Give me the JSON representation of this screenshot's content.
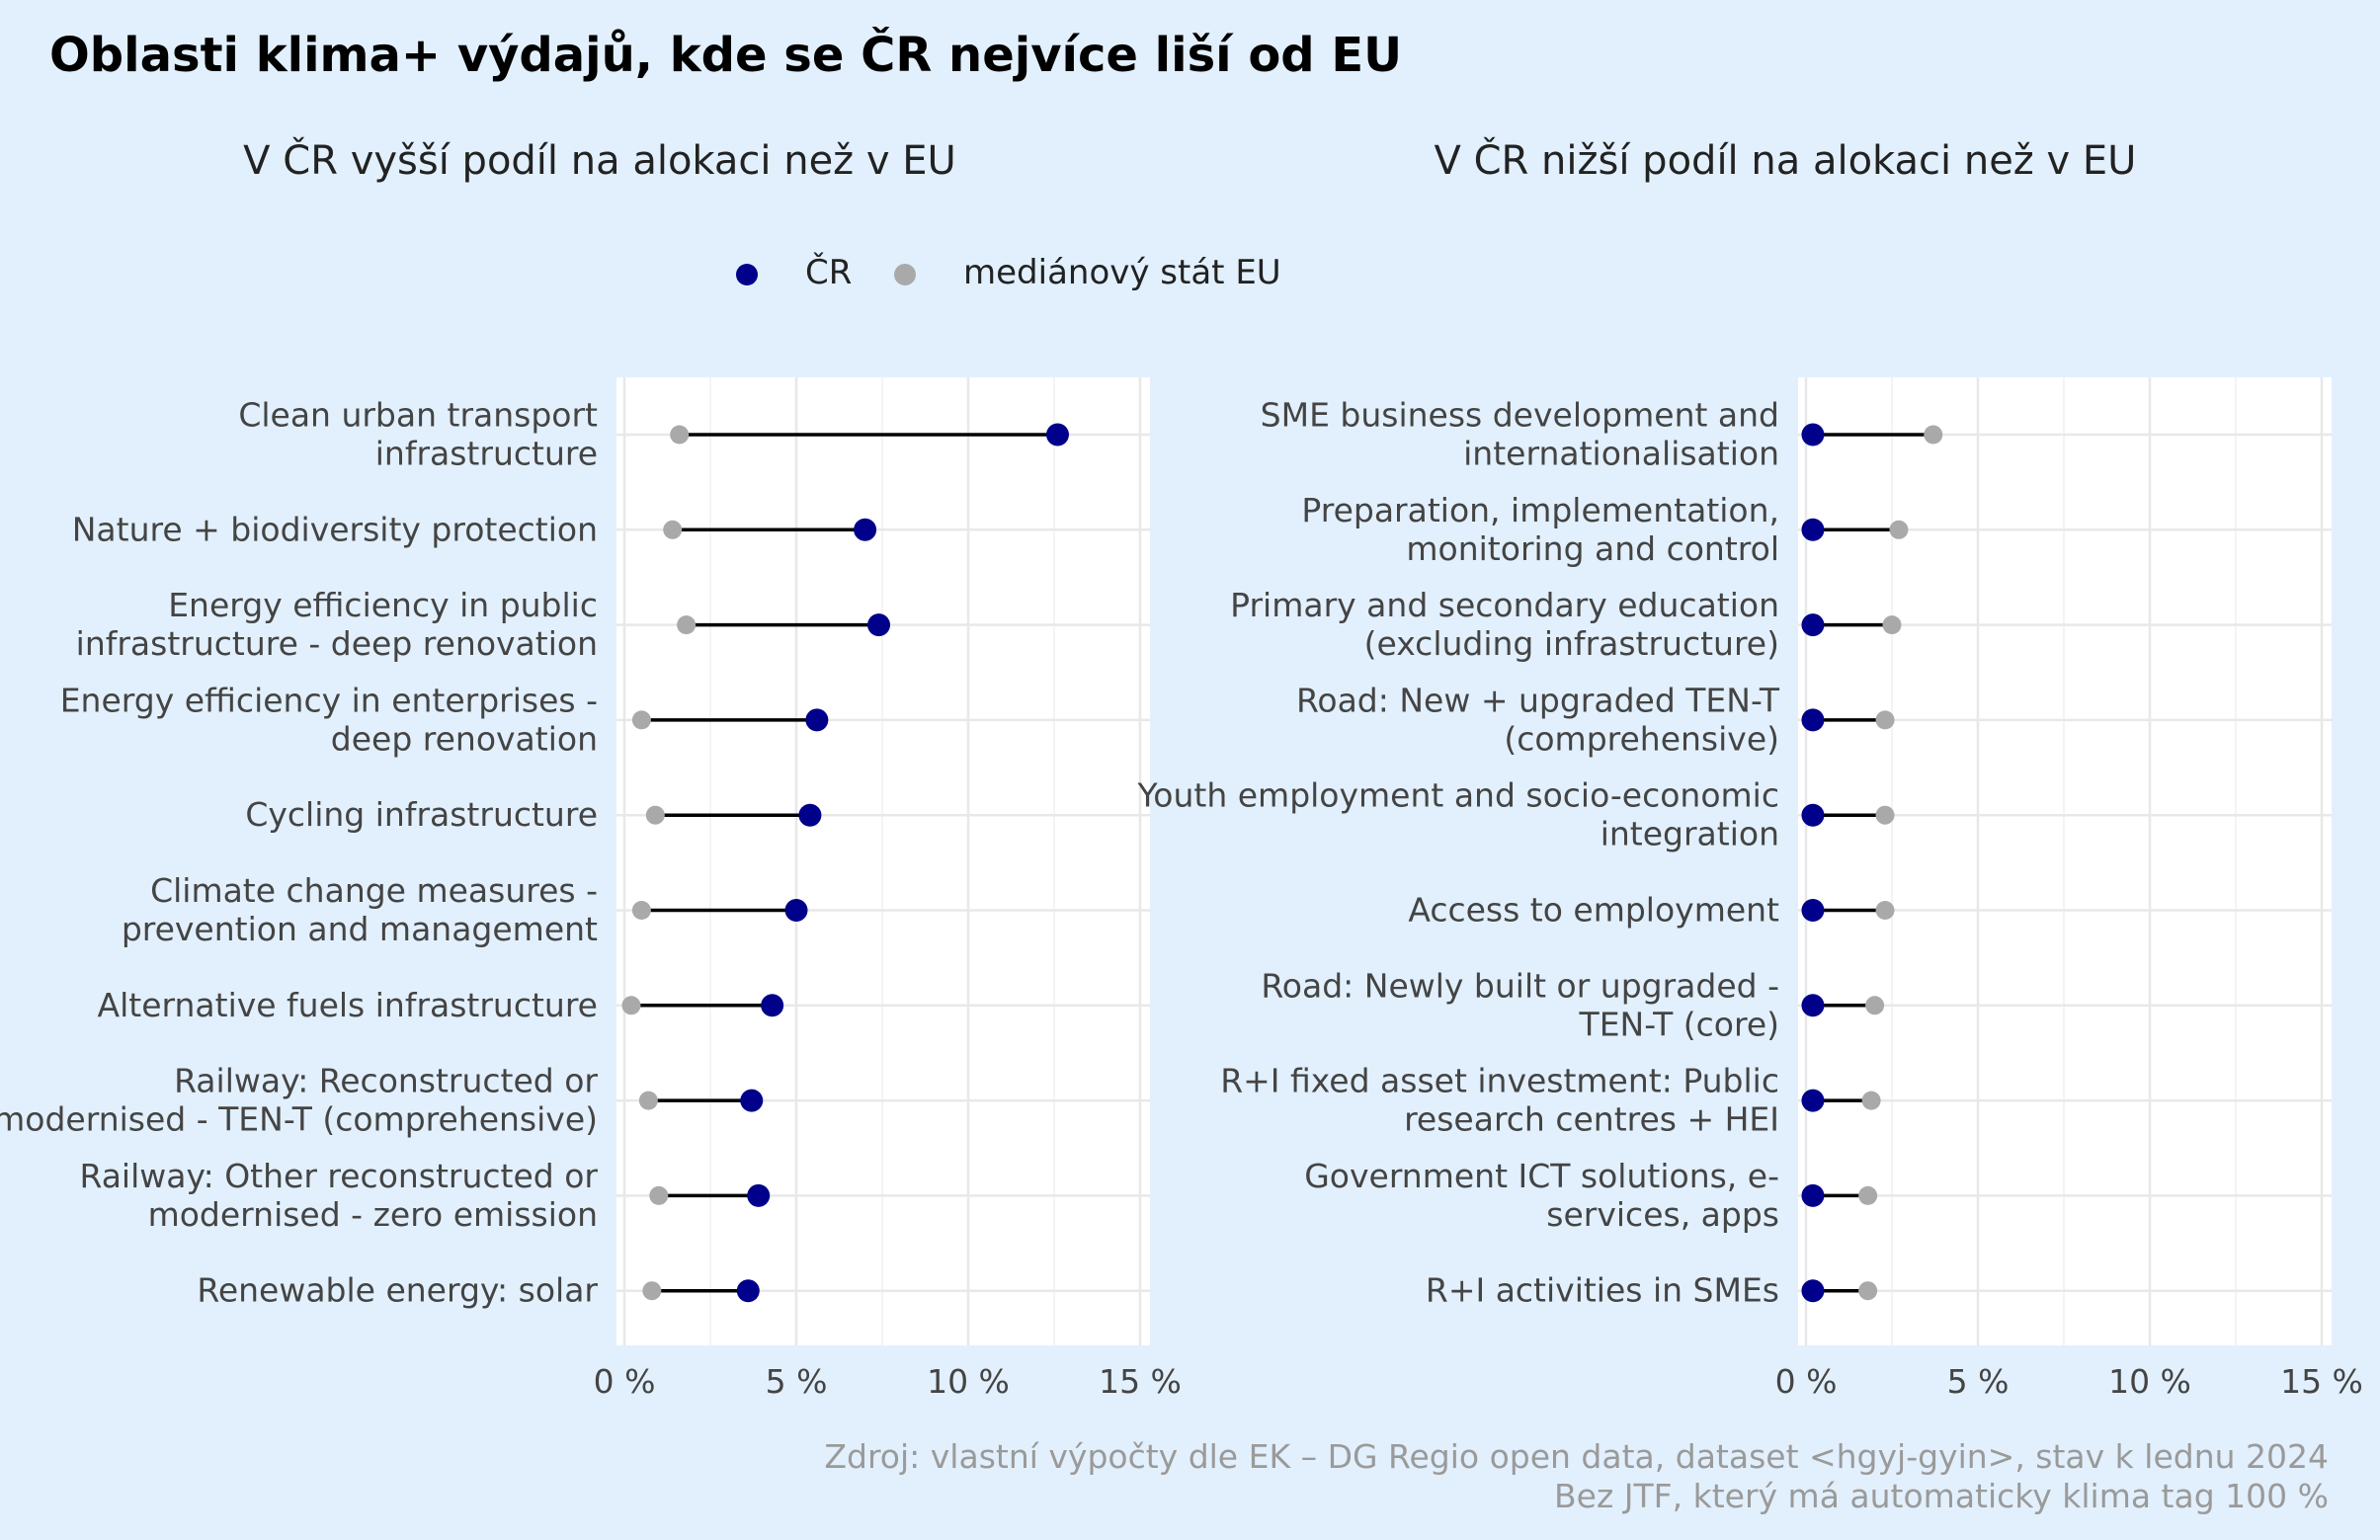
{
  "title": "Oblasti klima+ výdajů, kde se ČR nejvíce liší od EU",
  "legend": {
    "items": [
      {
        "label": "ČR",
        "color": "#00008b"
      },
      {
        "label": "mediánový stát EU",
        "color": "#a9a9a9"
      }
    ]
  },
  "source": {
    "line1": "Zdroj: vlastní výpočty dle EK – DG Regio open data, dataset <hgyj-gyin>, stav k lednu 2024",
    "line2": "Bez JTF, který má automaticky klima tag 100 %"
  },
  "colors": {
    "cr": "#00008b",
    "eu": "#a9a9a9",
    "panel": "#ffffff",
    "background": "#e2f0fd",
    "grid": "#e8e8e8"
  },
  "chart_data": [
    {
      "type": "dumbbell",
      "subtitle": "V ČR vyšší podíl na alokaci než v EU",
      "xlim": [
        0,
        15
      ],
      "x_ticks": [
        0,
        5,
        10,
        15
      ],
      "x_tick_labels": [
        "0 %",
        "5 %",
        "10 %",
        "15 %"
      ],
      "grid": true,
      "categories": [
        [
          "Clean urban transport",
          "infrastructure"
        ],
        [
          "Nature + biodiversity protection"
        ],
        [
          "Energy efficiency in public",
          "infrastructure - deep renovation"
        ],
        [
          "Energy efficiency in enterprises -",
          "deep renovation"
        ],
        [
          "Cycling infrastructure"
        ],
        [
          "Climate change measures -",
          "prevention and management"
        ],
        [
          "Alternative fuels infrastructure"
        ],
        [
          "Railway: Reconstructed or",
          "modernised - TEN-T (comprehensive)"
        ],
        [
          "Railway: Other reconstructed or",
          "modernised - zero emission"
        ],
        [
          "Renewable energy: solar"
        ]
      ],
      "series": [
        {
          "name": "ČR",
          "values": [
            12.6,
            7.0,
            7.4,
            5.6,
            5.4,
            5.0,
            4.3,
            3.7,
            3.9,
            3.6
          ]
        },
        {
          "name": "mediánový stát EU",
          "values": [
            1.6,
            1.4,
            1.8,
            0.5,
            0.9,
            0.5,
            0.2,
            0.7,
            1.0,
            0.8
          ]
        }
      ]
    },
    {
      "type": "dumbbell",
      "subtitle": "V ČR nižší podíl na alokaci než v EU",
      "xlim": [
        0,
        15
      ],
      "x_ticks": [
        0,
        5,
        10,
        15
      ],
      "x_tick_labels": [
        "0 %",
        "5 %",
        "10 %",
        "15 %"
      ],
      "grid": true,
      "categories": [
        [
          "SME business development and",
          "internationalisation"
        ],
        [
          "Preparation, implementation,",
          "monitoring and control"
        ],
        [
          "Primary and secondary education",
          "(excluding infrastructure)"
        ],
        [
          "Road: New + upgraded TEN-T",
          "(comprehensive)"
        ],
        [
          "Youth employment and socio-economic",
          "integration"
        ],
        [
          "Access to employment"
        ],
        [
          "Road: Newly built or upgraded -",
          "TEN-T (core)"
        ],
        [
          "R+I fixed asset investment: Public",
          "research centres + HEI"
        ],
        [
          "Government ICT solutions, e-",
          "services, apps"
        ],
        [
          "R+I activities in SMEs"
        ]
      ],
      "series": [
        {
          "name": "ČR",
          "values": [
            0.2,
            0.2,
            0.2,
            0.2,
            0.2,
            0.2,
            0.2,
            0.2,
            0.2,
            0.2
          ]
        },
        {
          "name": "mediánový stát EU",
          "values": [
            3.7,
            2.7,
            2.5,
            2.3,
            2.3,
            2.3,
            2.0,
            1.9,
            1.8,
            1.8
          ]
        }
      ]
    }
  ]
}
